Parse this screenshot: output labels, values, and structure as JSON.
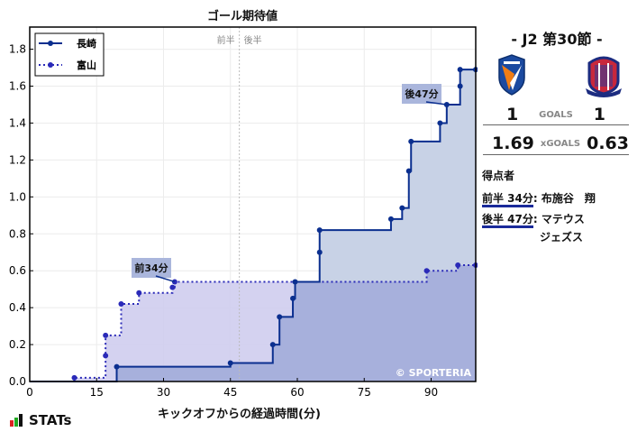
{
  "chart_data": {
    "type": "line",
    "subtype": "step-cumulative",
    "title": "ゴール期待値",
    "xlabel": "キックオフからの経過時間(分)",
    "ylabel": "",
    "xlim": [
      0,
      100
    ],
    "ylim": [
      0,
      1.92
    ],
    "xticks": [
      0,
      15,
      30,
      45,
      60,
      75,
      90
    ],
    "yticks": [
      0.0,
      0.2,
      0.4,
      0.6,
      0.8,
      1.0,
      1.2,
      1.4,
      1.6,
      1.8
    ],
    "grid": true,
    "legend_position": "upper left",
    "halftime_line": {
      "x": 47,
      "left_label": "前半",
      "right_label": "後半"
    },
    "series": [
      {
        "name": "長崎",
        "color": "#0b2f8f",
        "style": "solid",
        "points": [
          {
            "x": 19.5,
            "y": 0.08
          },
          {
            "x": 45,
            "y": 0.1
          },
          {
            "x": 54.5,
            "y": 0.2
          },
          {
            "x": 56,
            "y": 0.35
          },
          {
            "x": 59,
            "y": 0.45
          },
          {
            "x": 59.5,
            "y": 0.54
          },
          {
            "x": 65,
            "y": 0.7
          },
          {
            "x": 65,
            "y": 0.82
          },
          {
            "x": 81,
            "y": 0.88
          },
          {
            "x": 83.5,
            "y": 0.94
          },
          {
            "x": 85,
            "y": 1.14
          },
          {
            "x": 85.5,
            "y": 1.3
          },
          {
            "x": 92,
            "y": 1.4
          },
          {
            "x": 93.5,
            "y": 1.5
          },
          {
            "x": 96.5,
            "y": 1.6
          },
          {
            "x": 96.5,
            "y": 1.69
          },
          {
            "x": 100,
            "y": 1.69
          }
        ]
      },
      {
        "name": "富山",
        "color": "#2a2ab8",
        "style": "dotted",
        "points": [
          {
            "x": 10,
            "y": 0.02
          },
          {
            "x": 17,
            "y": 0.14
          },
          {
            "x": 17,
            "y": 0.25
          },
          {
            "x": 20.5,
            "y": 0.42
          },
          {
            "x": 24.5,
            "y": 0.48
          },
          {
            "x": 32,
            "y": 0.51
          },
          {
            "x": 32.5,
            "y": 0.54
          },
          {
            "x": 89,
            "y": 0.6
          },
          {
            "x": 96,
            "y": 0.63
          },
          {
            "x": 100,
            "y": 0.63
          }
        ]
      }
    ],
    "annotations": [
      {
        "text": "前34分",
        "x": 32.5,
        "y": 0.54
      },
      {
        "text": "後47分",
        "x": 93.5,
        "y": 1.5
      }
    ],
    "watermark": "© SPORTERIA"
  },
  "header": {
    "round": "- J2 第30節 -"
  },
  "match": {
    "home": {
      "name": "長崎",
      "goals": "1",
      "xgoals": "1.69"
    },
    "away": {
      "name": "富山",
      "goals": "1",
      "xgoals": "0.63"
    },
    "goals_label": "GOALS",
    "xgoals_label": "xGOALS"
  },
  "scorers": {
    "heading": "得点者",
    "items": [
      {
        "time": "前半 34分",
        "name": "布施谷　翔"
      },
      {
        "time": "後半 47分",
        "name": "マテウス",
        "name2": "ジェズス"
      }
    ]
  },
  "brand": {
    "label": "STATs"
  }
}
